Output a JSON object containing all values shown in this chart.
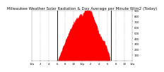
{
  "title": "Milwaukee Weather Solar Radiation & Day Average per Minute W/m2 (Today)",
  "background_color": "#ffffff",
  "plot_bg_color": "#ffffff",
  "grid_color": "#bbbbbb",
  "bar_color": "#ff0000",
  "line_color": "#0000cc",
  "ylim": [
    0,
    900
  ],
  "yticks": [
    100,
    200,
    300,
    400,
    500,
    600,
    700,
    800,
    900
  ],
  "num_points": 1440,
  "sunrise_idx": 370,
  "sunset_idx": 1130,
  "blue_line1_idx": 370,
  "blue_line2_idx": 1130,
  "title_fontsize": 4.0,
  "tick_fontsize": 2.8,
  "text_color": "#111111",
  "time_positions": [
    0,
    120,
    240,
    360,
    480,
    600,
    720,
    840,
    960,
    1080,
    1200,
    1320,
    1439
  ],
  "time_labels": [
    "12a",
    "2",
    "4",
    "6",
    "8",
    "10",
    "12p",
    "2",
    "4",
    "6",
    "8",
    "10",
    "12a"
  ],
  "grid_positions": [
    120,
    240,
    360,
    480,
    600,
    720,
    840,
    960,
    1080,
    1200,
    1320
  ]
}
